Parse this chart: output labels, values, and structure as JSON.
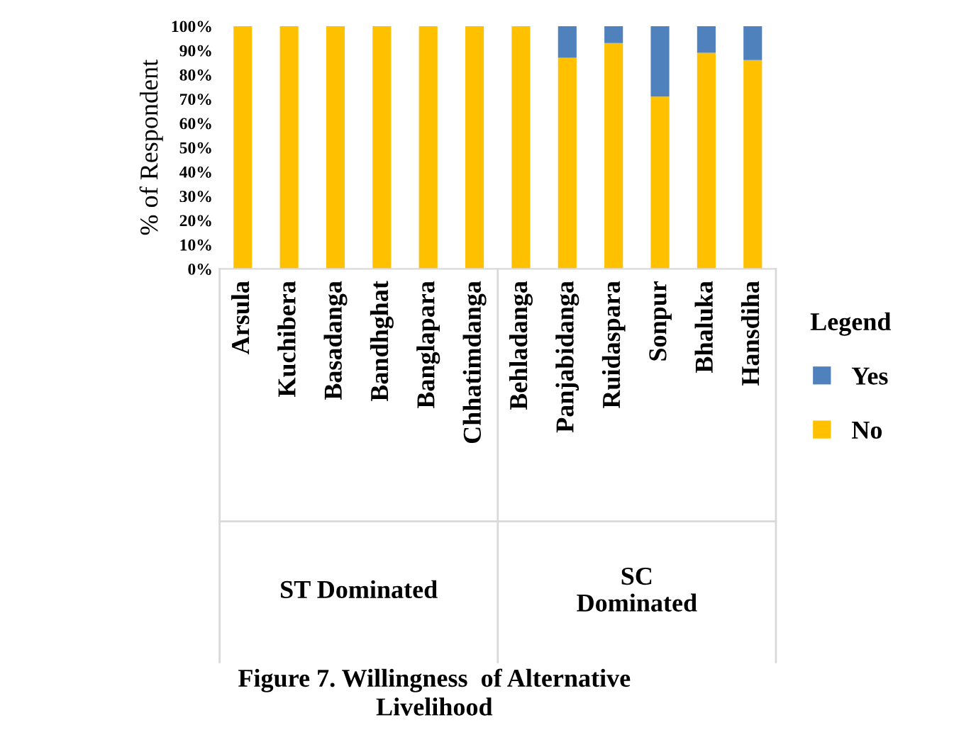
{
  "chart_data": {
    "type": "bar",
    "stacked": true,
    "title": "Figure 7. Willingness  of Alternative\nLivelihood",
    "ylabel": "% of Respondent",
    "legend_title": "Legend",
    "categories": [
      "Arsula",
      "Kuchibera",
      "Basadanga",
      "Bandhghat",
      "Banglapara",
      "Chhatimdanga",
      "Behladanga",
      "Panjabidanga",
      "Ruidaspara",
      "Sonpur",
      "Bhaluka",
      "Hansdiha"
    ],
    "series": [
      {
        "name": "No",
        "color": "#ffc000",
        "values": [
          100,
          100,
          100,
          100,
          100,
          100,
          100,
          87,
          93,
          71,
          89,
          86
        ]
      },
      {
        "name": "Yes",
        "color": "#4f81bd",
        "values": [
          0,
          0,
          0,
          0,
          0,
          0,
          0,
          13,
          7,
          29,
          11,
          14
        ]
      }
    ],
    "annotations": [
      "ST Dominated",
      "SC\nDominated"
    ],
    "ylim": [
      0,
      100
    ],
    "yticks": [
      {
        "value": 0,
        "label": "0%"
      },
      {
        "value": 10,
        "label": "10%"
      },
      {
        "value": 20,
        "label": "20%"
      },
      {
        "value": 30,
        "label": "30%"
      },
      {
        "value": 40,
        "label": "40%"
      },
      {
        "value": 50,
        "label": "50%"
      },
      {
        "value": 60,
        "label": "60%"
      },
      {
        "value": 70,
        "label": "70%"
      },
      {
        "value": 80,
        "label": "80%"
      },
      {
        "value": 90,
        "label": "90%"
      },
      {
        "value": 100,
        "label": "100%"
      }
    ],
    "grid": false,
    "legend": "right"
  }
}
